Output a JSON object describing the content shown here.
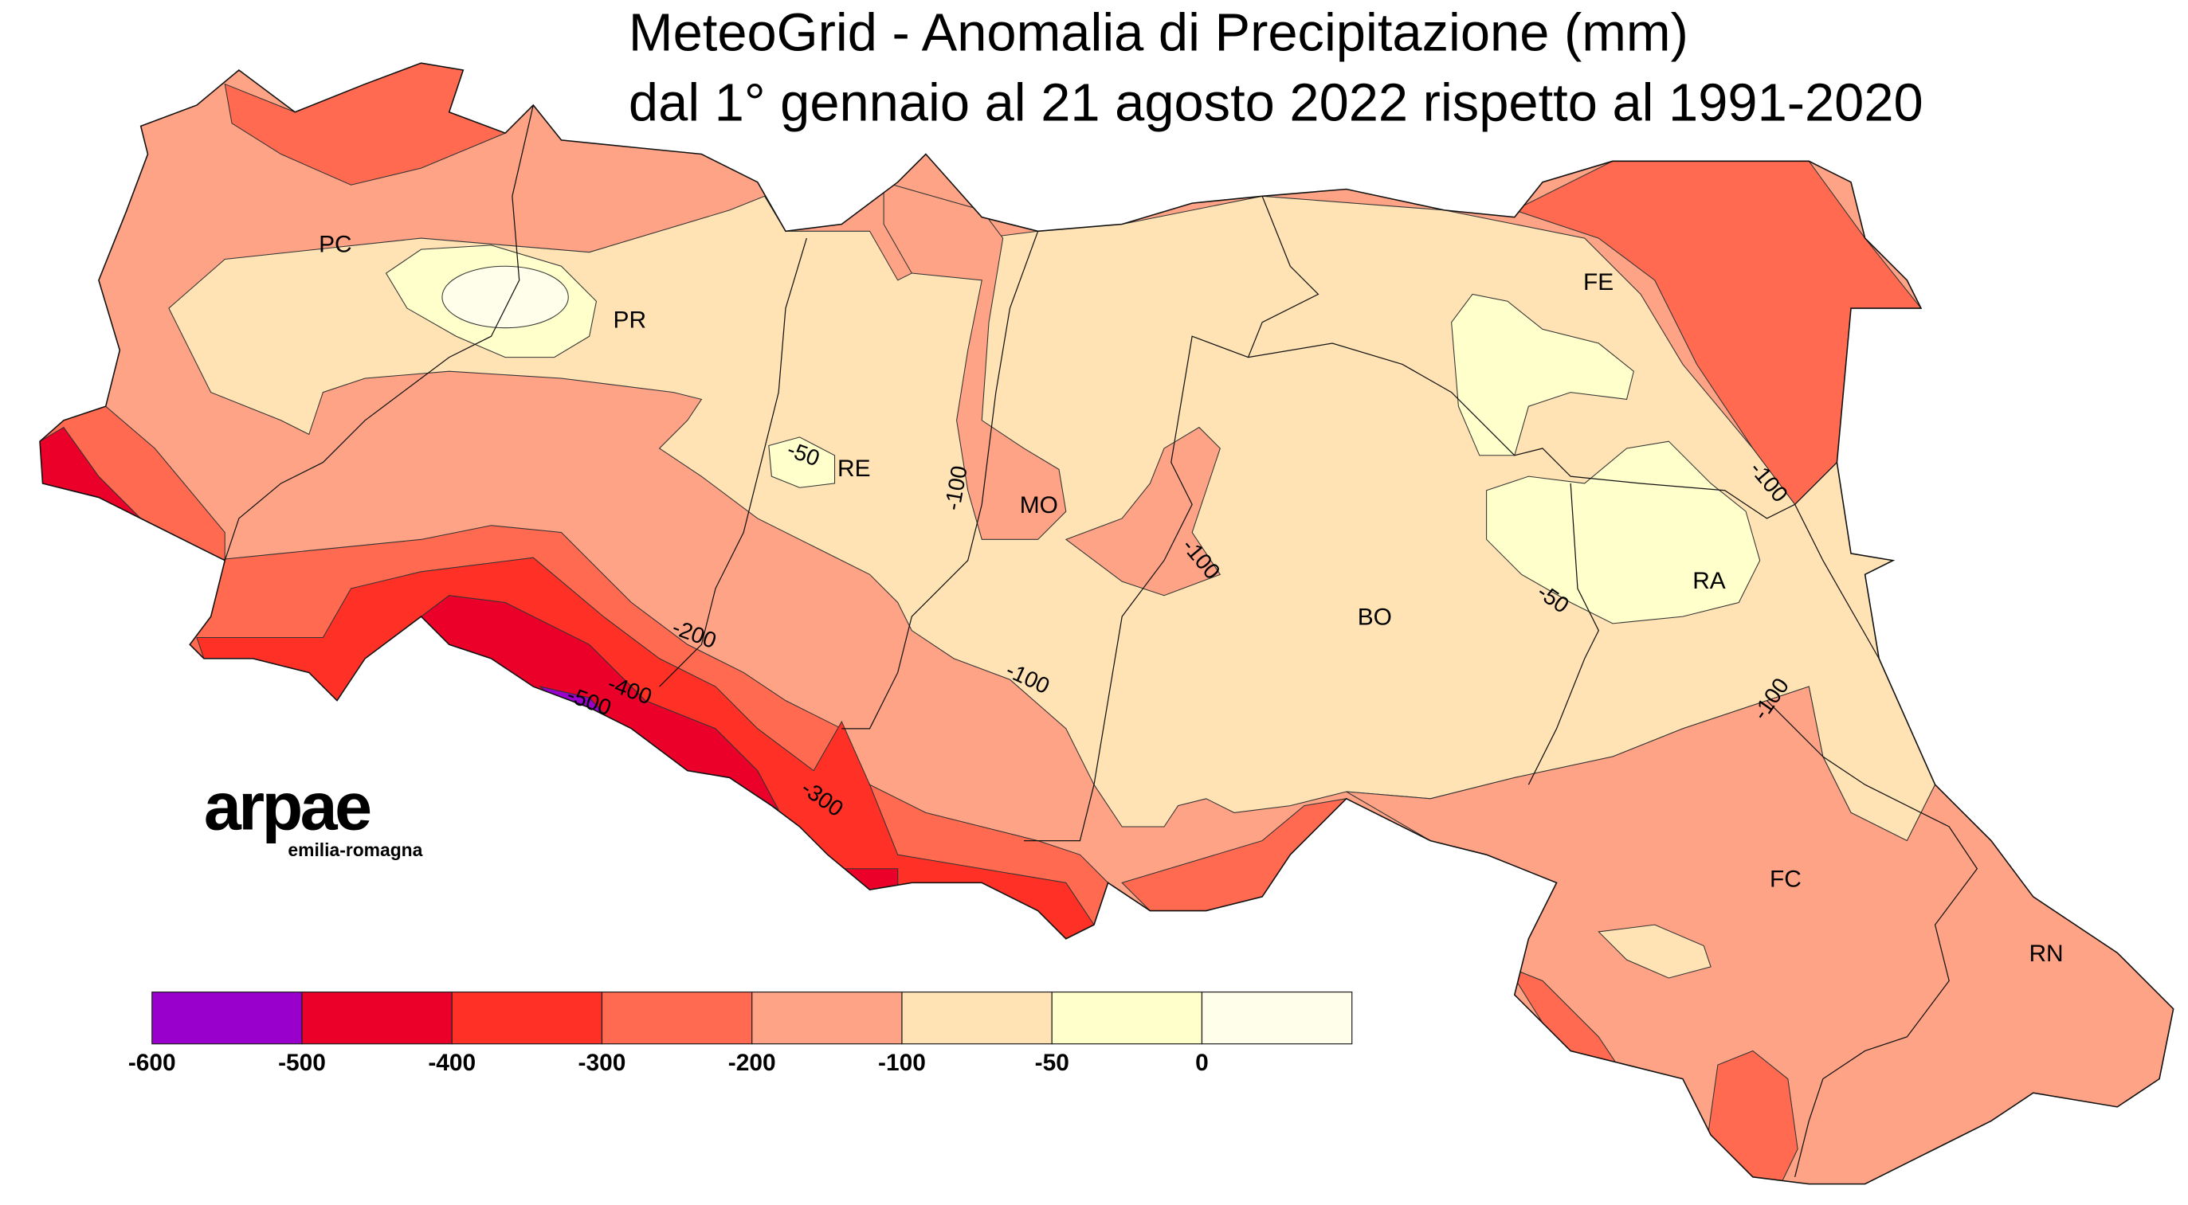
{
  "title": {
    "line1": "MeteoGrid - Anomalia di Precipitazione (mm)",
    "line2": "dal 1° gennaio al 21 agosto 2022 rispetto al 1991-2020"
  },
  "provinces": [
    "PC",
    "PR",
    "RE",
    "MO",
    "BO",
    "FE",
    "RA",
    "FC",
    "RN"
  ],
  "contour_labels": [
    "-50",
    "-100",
    "-100",
    "-200",
    "-400",
    "-500",
    "-300",
    "-100",
    "-100",
    "-50",
    "-100"
  ],
  "logo": {
    "name": "arpae",
    "sub": "emilia-romagna"
  },
  "legend": {
    "ticks": [
      "-600",
      "-500",
      "-400",
      "-300",
      "-200",
      "-100",
      "-50",
      "0"
    ],
    "colors": [
      "#9900cc",
      "#eb0029",
      "#ff3025",
      "#ff6a50",
      "#ffa386",
      "#ffe3b4",
      "#ffffcc",
      "#fffeea"
    ]
  }
}
